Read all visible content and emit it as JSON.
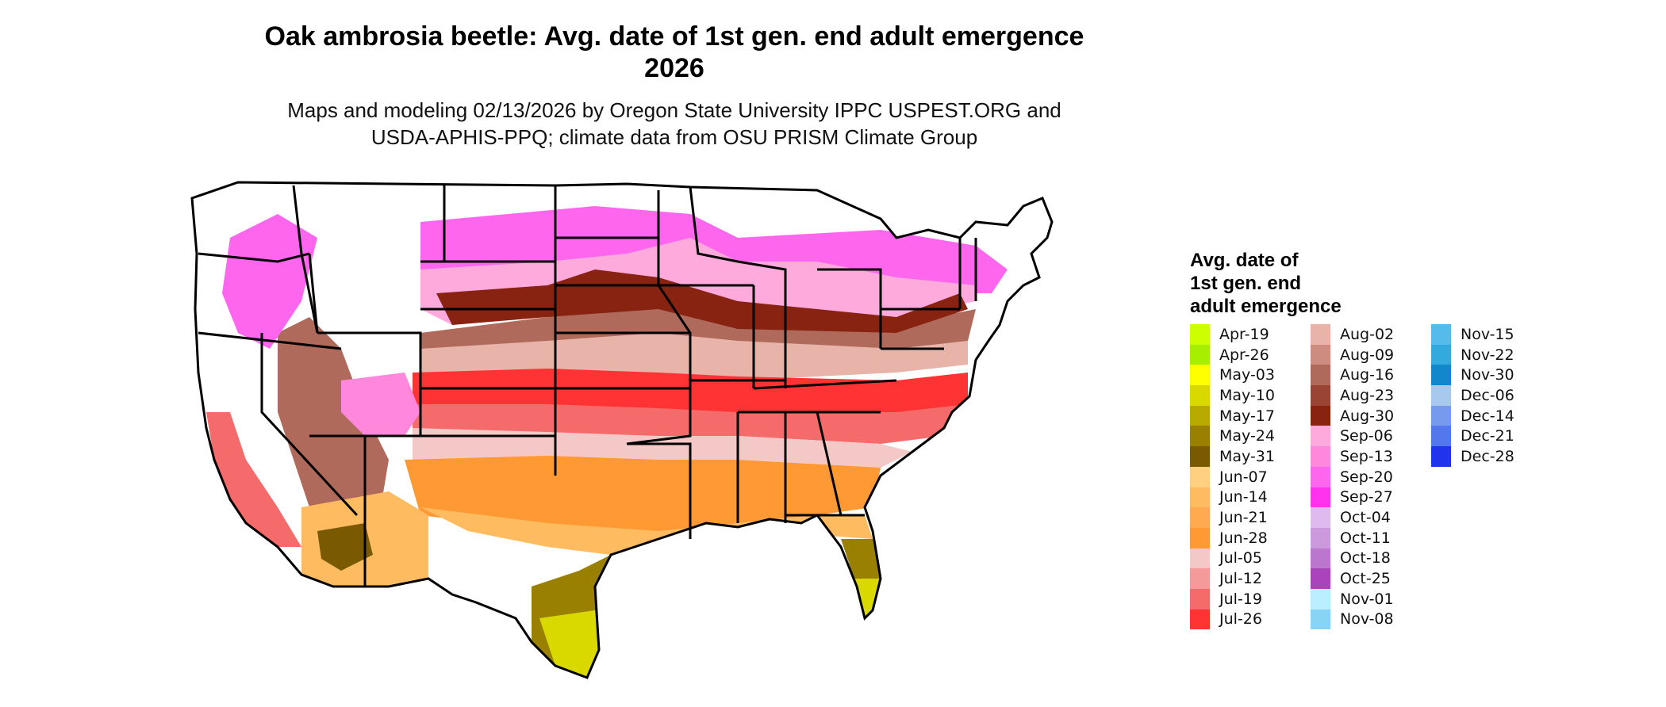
{
  "title": {
    "line1": "Oak ambrosia beetle: Avg. date of 1st gen. end adult emergence",
    "line2": "2026"
  },
  "subtitle": {
    "line1": "Maps and modeling 02/13/2026 by Oregon State University IPPC USPEST.ORG and",
    "line2": "USDA-APHIS-PPQ; climate data from OSU PRISM Climate Group"
  },
  "legend": {
    "title_line1": "Avg. date of",
    "title_line2": "1st gen. end",
    "title_line3": "adult emergence",
    "items": [
      {
        "label": "Apr-19",
        "color": "#ccff00"
      },
      {
        "label": "Apr-26",
        "color": "#a8ee00"
      },
      {
        "label": "May-03",
        "color": "#ffff00"
      },
      {
        "label": "May-10",
        "color": "#d9d900"
      },
      {
        "label": "May-17",
        "color": "#b8aa00"
      },
      {
        "label": "May-24",
        "color": "#9a8000"
      },
      {
        "label": "May-31",
        "color": "#7a5a00"
      },
      {
        "label": "Jun-07",
        "color": "#ffd080"
      },
      {
        "label": "Jun-14",
        "color": "#ffbb60"
      },
      {
        "label": "Jun-21",
        "color": "#ffaa50"
      },
      {
        "label": "Jun-28",
        "color": "#ff9933"
      },
      {
        "label": "Jul-05",
        "color": "#f5c8c8"
      },
      {
        "label": "Jul-12",
        "color": "#f59a9a"
      },
      {
        "label": "Jul-19",
        "color": "#f56a6a"
      },
      {
        "label": "Jul-26",
        "color": "#ff3333"
      },
      {
        "label": "Aug-02",
        "color": "#e8b4aa"
      },
      {
        "label": "Aug-09",
        "color": "#cc8c80"
      },
      {
        "label": "Aug-16",
        "color": "#b06a5c"
      },
      {
        "label": "Aug-23",
        "color": "#9a4433"
      },
      {
        "label": "Aug-30",
        "color": "#882211"
      },
      {
        "label": "Sep-06",
        "color": "#ffaadd"
      },
      {
        "label": "Sep-13",
        "color": "#ff88dd"
      },
      {
        "label": "Sep-20",
        "color": "#ff66ee"
      },
      {
        "label": "Sep-27",
        "color": "#ff33ee"
      },
      {
        "label": "Oct-04",
        "color": "#ddbbee"
      },
      {
        "label": "Oct-11",
        "color": "#cc99dd"
      },
      {
        "label": "Oct-18",
        "color": "#bb77cc"
      },
      {
        "label": "Oct-25",
        "color": "#aa44bb"
      },
      {
        "label": "Nov-01",
        "color": "#bbeeff"
      },
      {
        "label": "Nov-08",
        "color": "#88d4f4"
      },
      {
        "label": "Nov-15",
        "color": "#55bbea"
      },
      {
        "label": "Nov-22",
        "color": "#33aadd"
      },
      {
        "label": "Nov-30",
        "color": "#1188cc"
      },
      {
        "label": "Dec-06",
        "color": "#a8c8ee"
      },
      {
        "label": "Dec-14",
        "color": "#7799ee"
      },
      {
        "label": "Dec-21",
        "color": "#5577ee"
      },
      {
        "label": "Dec-28",
        "color": "#2233ee"
      }
    ]
  },
  "map": {
    "border_color": "#000000",
    "unmodeled_color": "#ffffff"
  }
}
